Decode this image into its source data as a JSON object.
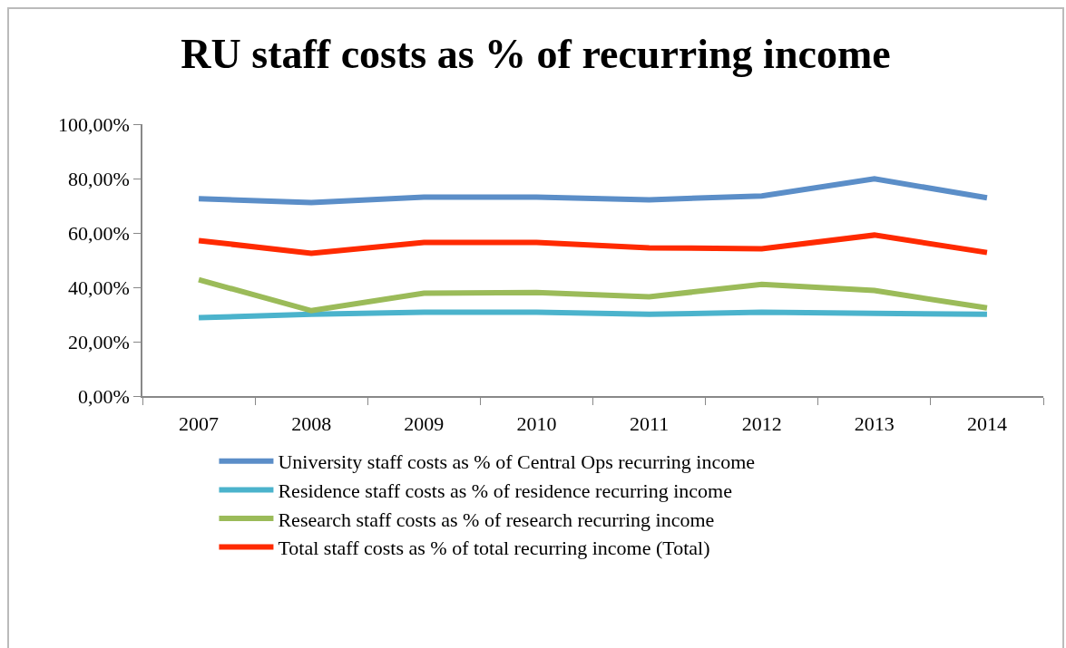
{
  "chart_data": {
    "type": "line",
    "title": "RU staff costs as % of recurring income",
    "categories": [
      "2007",
      "2008",
      "2009",
      "2010",
      "2011",
      "2012",
      "2013",
      "2014"
    ],
    "series": [
      {
        "name": "University staff costs as % of Central Ops recurring income",
        "color": "#5b8ec8",
        "values": [
          72.6,
          71.2,
          73.2,
          73.2,
          72.2,
          73.6,
          79.9,
          72.9
        ]
      },
      {
        "name": "Residence staff costs as % of residence recurring income",
        "color": "#4bb3cc",
        "values": [
          28.8,
          30.1,
          30.8,
          30.8,
          30.1,
          30.8,
          30.4,
          30.1
        ]
      },
      {
        "name": "Research staff costs as % of research recurring income",
        "color": "#9bbb59",
        "values": [
          42.8,
          31.4,
          37.8,
          38.1,
          36.5,
          41.1,
          38.8,
          32.4
        ]
      },
      {
        "name": "Total staff costs as % of total recurring income (Total)",
        "color": "#ff2a00",
        "values": [
          57.2,
          52.5,
          56.5,
          56.5,
          54.5,
          54.2,
          59.2,
          52.8
        ]
      }
    ],
    "ylim": [
      0,
      100
    ],
    "yticks": [
      {
        "value": 0,
        "label": "0,00%"
      },
      {
        "value": 20,
        "label": "20,00%"
      },
      {
        "value": 40,
        "label": "40,00%"
      },
      {
        "value": 60,
        "label": "60,00%"
      },
      {
        "value": 80,
        "label": "80,00%"
      },
      {
        "value": 100,
        "label": "100,00%"
      }
    ],
    "grid": false,
    "legend": "bottom",
    "marker": "none",
    "line_style": "solid"
  }
}
